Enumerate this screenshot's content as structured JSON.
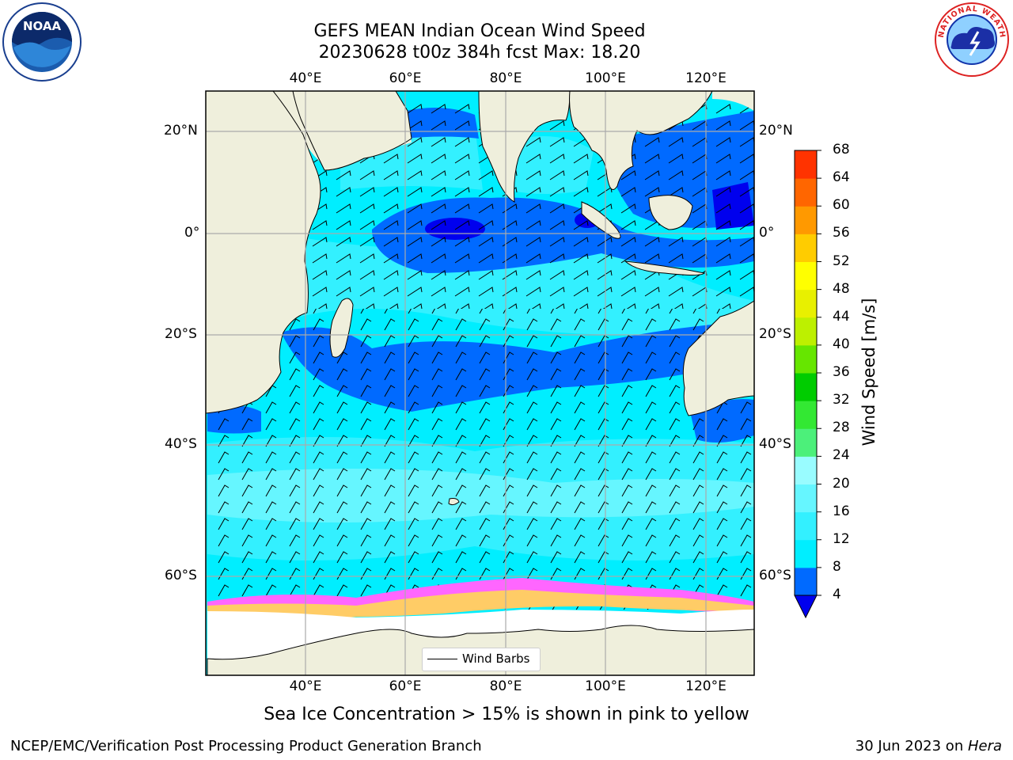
{
  "header": {
    "title_line1": "GEFS MEAN Indian Ocean Wind Speed",
    "title_line2": "20230628 t00z 384h fcst   Max: 18.20"
  },
  "logos": {
    "left": "NOAA",
    "left_ring_text": "NATIONAL OCEANIC AND ATMOSPHERIC ADMINISTRATION · U.S. DEPARTMENT OF COMMERCE",
    "right_ring_text": "NATIONAL WEATHER SERVICE"
  },
  "map": {
    "lon_ticks": [
      "40°E",
      "60°E",
      "80°E",
      "100°E",
      "120°E"
    ],
    "lat_ticks": [
      "20°N",
      "0°",
      "20°S",
      "40°S",
      "60°S"
    ],
    "legend_label": "Wind Barbs"
  },
  "colorbar": {
    "title": "Wind Speed [m/s]",
    "levels": [
      "4",
      "8",
      "12",
      "16",
      "20",
      "24",
      "28",
      "32",
      "36",
      "40",
      "44",
      "48",
      "52",
      "56",
      "60",
      "64",
      "68"
    ],
    "colors": [
      "#0000ee",
      "#006aff",
      "#00eeff",
      "#33f0ff",
      "#66f6ff",
      "#99fcff",
      "#4cf07a",
      "#33e833",
      "#00cc00",
      "#66e600",
      "#bdf000",
      "#e8f000",
      "#ffff00",
      "#ffcc00",
      "#ff9900",
      "#ff6600",
      "#ff3300",
      "#ff0000"
    ]
  },
  "caption": "Sea Ice Concentration > 15% is shown in pink to yellow",
  "footer": {
    "left": "NCEP/EMC/Verification Post Processing Product Generation Branch",
    "right_prefix": "30 Jun 2023 on ",
    "right_host": "Hera"
  }
}
